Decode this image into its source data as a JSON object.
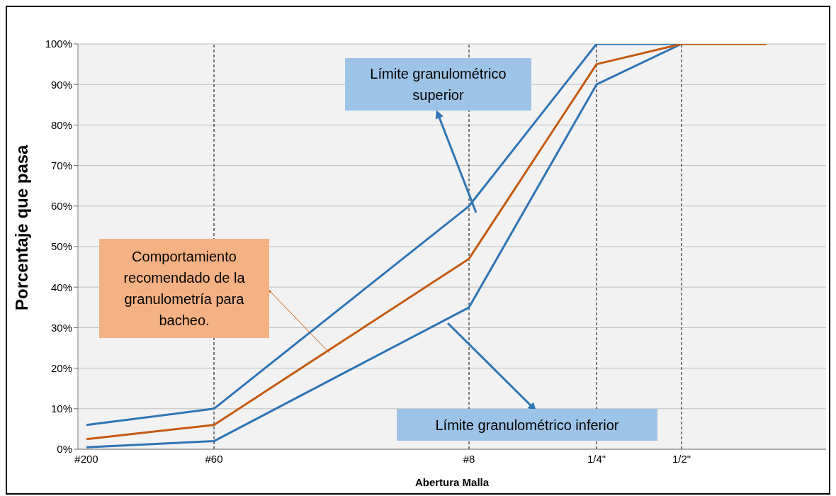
{
  "chart_data": {
    "type": "line",
    "xlabel": "Abertura Malla",
    "ylabel": "Porcentaje que pasa",
    "categories": [
      "#200",
      null,
      null,
      "#60",
      null,
      null,
      null,
      null,
      null,
      "#8",
      null,
      null,
      "1/4\"",
      null,
      "1/2\"",
      null,
      null
    ],
    "ylim": [
      0,
      100
    ],
    "yticks": [
      {
        "value": 0,
        "label": "0%"
      },
      {
        "value": 10,
        "label": "10%"
      },
      {
        "value": 20,
        "label": "20%"
      },
      {
        "value": 30,
        "label": "30%"
      },
      {
        "value": 40,
        "label": "40%"
      },
      {
        "value": 50,
        "label": "50%"
      },
      {
        "value": 60,
        "label": "60%"
      },
      {
        "value": 70,
        "label": "70%"
      },
      {
        "value": 80,
        "label": "80%"
      },
      {
        "value": 90,
        "label": "90%"
      },
      {
        "value": 100,
        "label": "100%"
      }
    ],
    "grid": "y",
    "marker": "none",
    "line_style": "solid",
    "series": [
      {
        "color": "#2e75b6",
        "values": [
          6,
          null,
          null,
          10,
          null,
          null,
          null,
          null,
          null,
          60,
          null,
          null,
          100,
          null,
          100,
          null,
          null
        ]
      },
      {
        "color": "#2e75b6",
        "values": [
          0.5,
          null,
          null,
          2,
          null,
          null,
          null,
          null,
          null,
          35,
          null,
          null,
          90,
          null,
          100,
          null,
          null
        ]
      },
      {
        "color": "#c55a11",
        "values": [
          2.5,
          null,
          null,
          6,
          null,
          null,
          null,
          null,
          null,
          47,
          null,
          null,
          95,
          null,
          100,
          null,
          100
        ]
      }
    ],
    "ref_lines": [
      {
        "axis": "x",
        "value": "#60",
        "color": "#000000",
        "line_style": "dashed"
      },
      {
        "axis": "x",
        "value": "#8",
        "color": "#000000",
        "line_style": "dashed"
      },
      {
        "axis": "x",
        "value": "1/4\"",
        "color": "#000000",
        "line_style": "dashed"
      },
      {
        "axis": "x",
        "value": "1/2\"",
        "color": "#000000",
        "line_style": "dashed"
      }
    ],
    "annotations": [
      "Límite granulométrico superior",
      "Comportamiento recomendado de la granulometría para bacheo.",
      "Límite granulométrico inferior"
    ]
  }
}
